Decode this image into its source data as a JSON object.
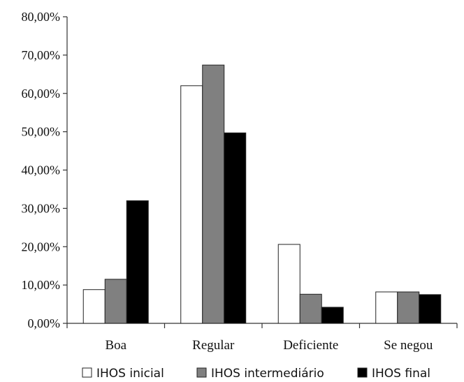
{
  "chart_data": {
    "type": "bar",
    "title": "",
    "xlabel": "",
    "ylabel": "",
    "categories": [
      "Boa",
      "Regular",
      "Deficiente",
      "Se negou"
    ],
    "series": [
      {
        "name": "IHOS inicial",
        "color": "#ffffff",
        "values": [
          8.8,
          62.0,
          20.6,
          8.2
        ]
      },
      {
        "name": "IHOS intermediário",
        "color": "#808080",
        "values": [
          11.5,
          67.4,
          7.6,
          8.2
        ]
      },
      {
        "name": "IHOS final",
        "color": "#000000",
        "values": [
          32.0,
          49.7,
          4.2,
          7.5
        ]
      }
    ],
    "ylim": [
      0,
      80
    ],
    "yticks": [
      "0,00%",
      "10,00%",
      "20,00%",
      "30,00%",
      "40,00%",
      "50,00%",
      "60,00%",
      "70,00%",
      "80,00%"
    ],
    "grid": false,
    "legend_position": "bottom"
  }
}
